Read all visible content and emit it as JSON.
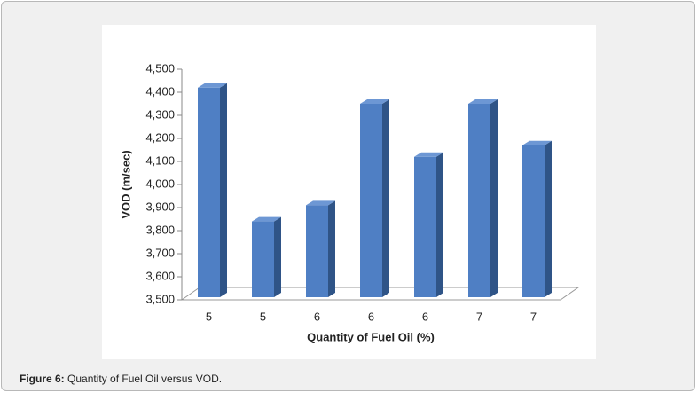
{
  "chart_data": {
    "type": "bar3d",
    "x_label": "Quantity of Fuel Oil (%)",
    "y_label": "VOD (m/sec)",
    "categories": [
      "5",
      "5",
      "6",
      "6",
      "6",
      "7",
      "7"
    ],
    "values": [
      4420,
      3840,
      3910,
      4350,
      4120,
      4350,
      4170
    ],
    "color": "#4f7fc4",
    "ylim": [
      3500,
      4500
    ],
    "yticks": [
      {
        "value": 3500,
        "label": "3,500"
      },
      {
        "value": 3600,
        "label": "3,600"
      },
      {
        "value": 3700,
        "label": "3,700"
      },
      {
        "value": 3800,
        "label": "3,800"
      },
      {
        "value": 3900,
        "label": "3,900"
      },
      {
        "value": 4000,
        "label": "4,000"
      },
      {
        "value": 4100,
        "label": "4,100"
      },
      {
        "value": 4200,
        "label": "4,200"
      },
      {
        "value": 4300,
        "label": "4,300"
      },
      {
        "value": 4400,
        "label": "4,400"
      },
      {
        "value": 4500,
        "label": "4,500"
      }
    ]
  },
  "caption": {
    "label": "Figure 6:",
    "text": "Quantity of Fuel Oil versus VOD."
  }
}
